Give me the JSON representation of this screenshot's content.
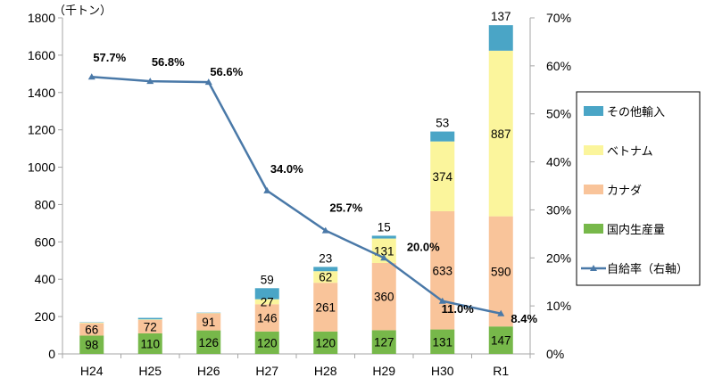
{
  "chart_data": {
    "type": "bar",
    "stacked": true,
    "combo_line": true,
    "categories": [
      "H24",
      "H25",
      "H26",
      "H27",
      "H28",
      "H29",
      "H30",
      "R1"
    ],
    "y_unit": "（千トン）",
    "ylim": [
      0,
      1800
    ],
    "y_ticks": [
      "0",
      "200",
      "400",
      "600",
      "800",
      "1000",
      "1200",
      "1400",
      "1600",
      "1800"
    ],
    "y2lim": [
      0,
      70
    ],
    "y2_ticks": [
      "0%",
      "10%",
      "20%",
      "30%",
      "40%",
      "50%",
      "60%",
      "70%"
    ],
    "grid": false,
    "legend_position": "right",
    "series": [
      {
        "name": "国内生産量",
        "color": "#77b84a",
        "values": [
          98,
          110,
          126,
          120,
          120,
          127,
          131,
          147
        ],
        "labels": [
          "98",
          "110",
          "126",
          "120",
          "120",
          "127",
          "131",
          "147"
        ]
      },
      {
        "name": "カナダ",
        "color": "#f9c49a",
        "values": [
          66,
          72,
          91,
          146,
          261,
          360,
          633,
          590
        ],
        "labels": [
          "66",
          "72",
          "91",
          "146",
          "261",
          "360",
          "633",
          "590"
        ]
      },
      {
        "name": "ベトナム",
        "color": "#fbf59c",
        "values": [
          3,
          3,
          2,
          27,
          62,
          131,
          374,
          887
        ],
        "labels": [
          "",
          "",
          "",
          "27",
          "62",
          "131",
          "374",
          "887"
        ]
      },
      {
        "name": "その他輸入",
        "color": "#4aa5c6",
        "values": [
          2,
          8,
          2,
          59,
          23,
          15,
          53,
          137
        ],
        "labels": [
          "",
          "",
          "",
          "59",
          "23",
          "15",
          "53",
          "137"
        ]
      }
    ],
    "line_series": {
      "name": "自給率（右軸）",
      "color": "#4a79a8",
      "axis": "right",
      "values": [
        57.7,
        56.8,
        56.6,
        34.0,
        25.7,
        20.0,
        11.0,
        8.4
      ],
      "labels": [
        "57.7%",
        "56.8%",
        "56.6%",
        "34.0%",
        "25.7%",
        "20.0%",
        "11.0%",
        "8.4%"
      ]
    },
    "legend_order": [
      "その他輸入",
      "ベトナム",
      "カナダ",
      "国内生産量",
      "自給率（右軸）"
    ]
  }
}
